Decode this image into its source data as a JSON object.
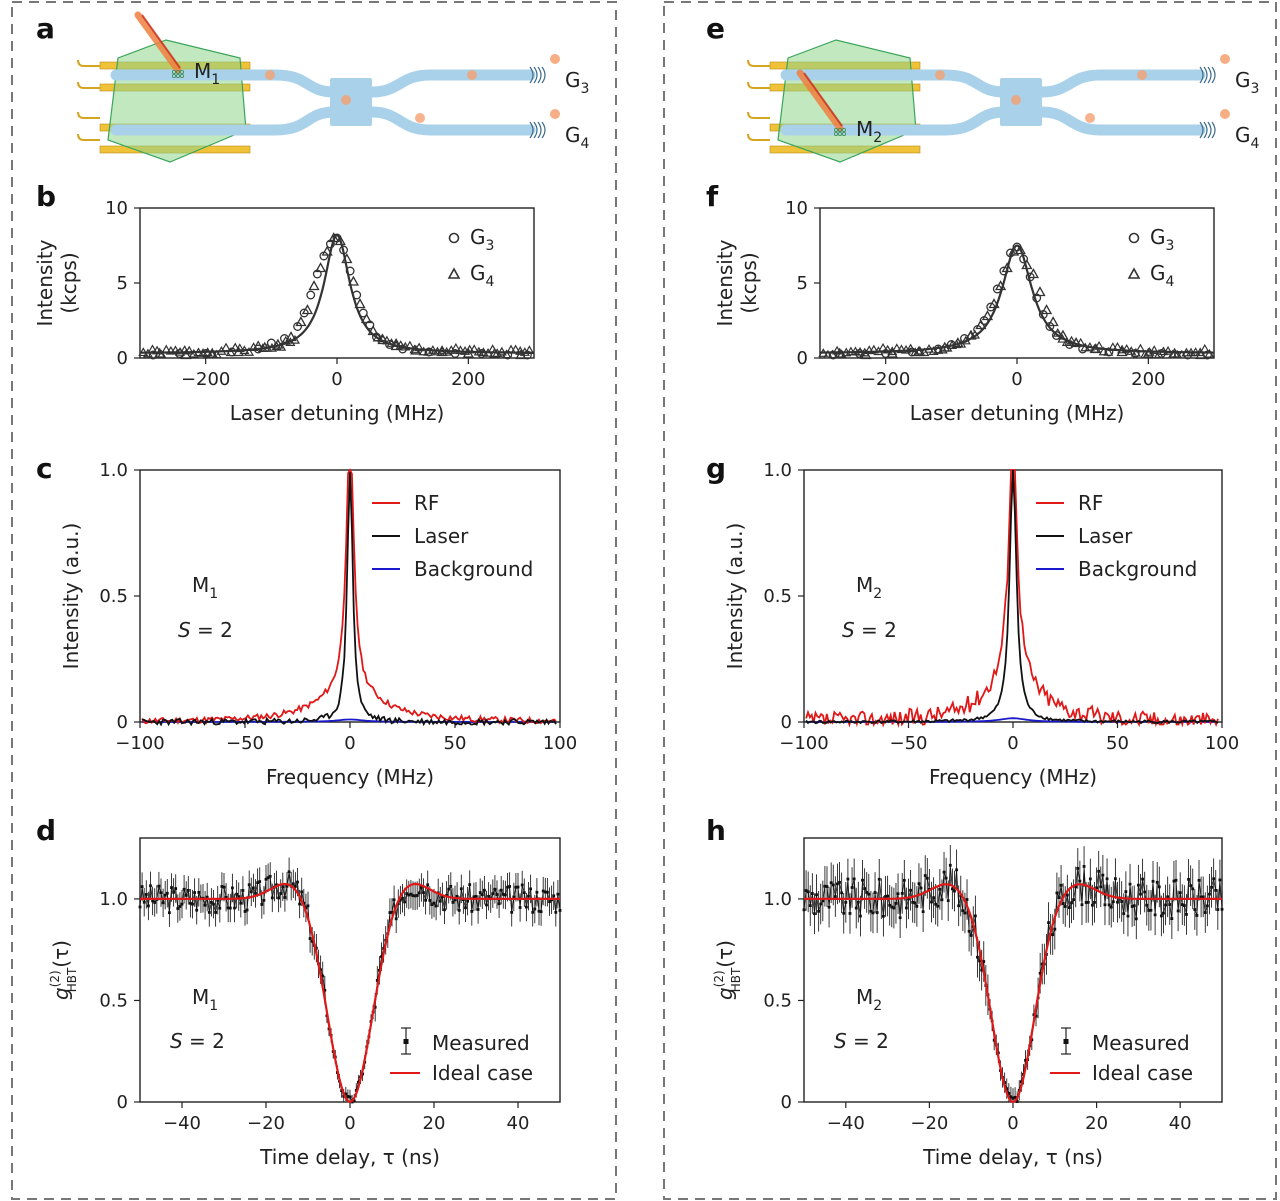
{
  "figure": {
    "panel_letters": [
      "a",
      "b",
      "c",
      "d",
      "e",
      "f",
      "g",
      "h"
    ]
  },
  "schematics": [
    {
      "letter": "a",
      "emitter_label": "M",
      "emitter_sub": "1",
      "grating_labels": [
        {
          "main": "G",
          "sub": "3"
        },
        {
          "main": "G",
          "sub": "4"
        }
      ],
      "laser_on": "top"
    },
    {
      "letter": "e",
      "emitter_label": "M",
      "emitter_sub": "2",
      "grating_labels": [
        {
          "main": "G",
          "sub": "3"
        },
        {
          "main": "G",
          "sub": "4"
        }
      ],
      "laser_on": "bottom"
    }
  ],
  "colors": {
    "rf": "#e01818",
    "laser": "#111111",
    "background": "#1a1acc",
    "ideal": "#e01818",
    "measured": "#111111",
    "waveguide": "#a9d2ea",
    "electrode": "#f0c23a",
    "flake": "#8fd68a"
  },
  "chart_data": [
    {
      "panel": "b",
      "type": "scatter",
      "xlabel": "Laser detuning (MHz)",
      "ylabel": [
        "Intensity",
        "(kcps)"
      ],
      "xlim": [
        -300,
        300
      ],
      "ylim": [
        0,
        10
      ],
      "xticks": [
        -200,
        0,
        200
      ],
      "xticklabels": [
        "−200",
        "0",
        "200"
      ],
      "yticks": [
        0,
        5,
        10
      ],
      "yticklabels": [
        "0",
        "5",
        "10"
      ],
      "series": [
        {
          "name": "G3",
          "label_main": "G",
          "label_sub": "3",
          "marker": "circle",
          "x": [
            -280,
            -240,
            -200,
            -160,
            -120,
            -100,
            -80,
            -60,
            -50,
            -40,
            -30,
            -20,
            -10,
            0,
            10,
            20,
            30,
            40,
            50,
            60,
            80,
            100,
            140,
            180,
            220,
            260,
            290
          ],
          "y": [
            0.2,
            0.3,
            0.3,
            0.4,
            0.6,
            1.0,
            1.3,
            2.1,
            3.0,
            4.2,
            5.6,
            6.8,
            7.6,
            8.0,
            7.2,
            5.8,
            4.2,
            3.0,
            2.2,
            1.4,
            0.9,
            0.6,
            0.4,
            0.3,
            0.3,
            0.2,
            0.2
          ]
        },
        {
          "name": "G4",
          "label_main": "G",
          "label_sub": "4",
          "marker": "triangle",
          "x": [
            -270,
            -230,
            -190,
            -150,
            -110,
            -90,
            -70,
            -55,
            -45,
            -35,
            -25,
            -15,
            -5,
            5,
            15,
            25,
            35,
            45,
            55,
            70,
            90,
            120,
            160,
            200,
            240,
            280
          ],
          "y": [
            0.3,
            0.2,
            0.3,
            0.4,
            0.7,
            0.9,
            1.4,
            2.4,
            3.2,
            4.8,
            6.0,
            7.1,
            8.0,
            7.8,
            6.6,
            5.1,
            3.6,
            2.6,
            1.8,
            1.2,
            0.8,
            0.5,
            0.4,
            0.3,
            0.3,
            0.2
          ]
        }
      ],
      "fit": {
        "center": 0,
        "gamma": 24,
        "amp": 7.9,
        "offset": 0.3
      }
    },
    {
      "panel": "f",
      "type": "scatter",
      "xlabel": "Laser detuning (MHz)",
      "ylabel": [
        "Intensity",
        "(kcps)"
      ],
      "xlim": [
        -300,
        300
      ],
      "ylim": [
        0,
        10
      ],
      "xticks": [
        -200,
        0,
        200
      ],
      "xticklabels": [
        "−200",
        "0",
        "200"
      ],
      "yticks": [
        0,
        5,
        10
      ],
      "yticklabels": [
        "0",
        "5",
        "10"
      ],
      "series": [
        {
          "name": "G3",
          "label_main": "G",
          "label_sub": "3",
          "marker": "circle",
          "x": [
            -280,
            -240,
            -200,
            -160,
            -120,
            -100,
            -80,
            -60,
            -50,
            -40,
            -30,
            -20,
            -10,
            0,
            10,
            20,
            30,
            40,
            50,
            60,
            80,
            100,
            140,
            180,
            220,
            260,
            290
          ],
          "y": [
            0.2,
            0.3,
            0.3,
            0.4,
            0.6,
            0.9,
            1.3,
            1.9,
            2.5,
            3.4,
            4.6,
            5.8,
            7.0,
            7.4,
            6.6,
            5.4,
            4.0,
            2.9,
            2.1,
            1.5,
            0.9,
            0.6,
            0.4,
            0.3,
            0.3,
            0.2,
            0.2
          ]
        },
        {
          "name": "G4",
          "label_main": "G",
          "label_sub": "4",
          "marker": "triangle",
          "x": [
            -270,
            -230,
            -190,
            -150,
            -110,
            -90,
            -70,
            -55,
            -45,
            -35,
            -25,
            -15,
            -5,
            5,
            15,
            25,
            35,
            45,
            55,
            70,
            90,
            120,
            160,
            200,
            240,
            280
          ],
          "y": [
            0.3,
            0.2,
            0.3,
            0.4,
            0.7,
            1.0,
            1.5,
            2.2,
            2.8,
            3.6,
            4.8,
            6.0,
            7.1,
            7.2,
            6.2,
            5.6,
            4.4,
            3.2,
            2.4,
            1.5,
            1.0,
            0.6,
            0.4,
            0.3,
            0.3,
            0.2
          ]
        }
      ],
      "fit": {
        "center": 0,
        "gamma": 28,
        "amp": 7.2,
        "offset": 0.3
      }
    },
    {
      "panel": "c",
      "type": "line",
      "xlabel": "Frequency (MHz)",
      "ylabel": [
        "Intensity (a.u.)"
      ],
      "xlim": [
        -100,
        100
      ],
      "ylim": [
        0,
        1.0
      ],
      "xticks": [
        -100,
        -50,
        0,
        50,
        100
      ],
      "xticklabels": [
        "−100",
        "−50",
        "0",
        "50",
        "100"
      ],
      "yticks": [
        0,
        0.5,
        1.0
      ],
      "yticklabels": [
        "0",
        "0.5",
        "1.0"
      ],
      "annotation": {
        "emitter_main": "M",
        "emitter_sub": "1",
        "s_label": "S",
        "s_value": " = 2"
      },
      "series": [
        {
          "name": "RF",
          "color_key": "rf",
          "peak": 1.0,
          "core_width": 2.2,
          "wing_amp": 0.12,
          "wing_width": 18,
          "noise": 0.012,
          "seed": 11
        },
        {
          "name": "Laser",
          "color_key": "laser",
          "peak": 1.0,
          "core_width": 1.6,
          "wing_amp": 0.0,
          "wing_width": 10,
          "noise": 0.012,
          "seed": 23
        },
        {
          "name": "Background",
          "color_key": "background",
          "peak": 0.01,
          "core_width": 8,
          "wing_amp": 0.0,
          "wing_width": 10,
          "noise": 0.0,
          "seed": 5
        }
      ]
    },
    {
      "panel": "g",
      "type": "line",
      "xlabel": "Frequency (MHz)",
      "ylabel": [
        "Intensity (a.u.)"
      ],
      "xlim": [
        -100,
        100
      ],
      "ylim": [
        0,
        1.0
      ],
      "xticks": [
        -100,
        -50,
        0,
        50,
        100
      ],
      "xticklabels": [
        "−100",
        "−50",
        "0",
        "50",
        "100"
      ],
      "yticks": [
        0,
        0.5,
        1.0
      ],
      "yticklabels": [
        "0",
        "0.5",
        "1.0"
      ],
      "annotation": {
        "emitter_main": "M",
        "emitter_sub": "2",
        "s_label": "S",
        "s_value": " = 2"
      },
      "series": [
        {
          "name": "RF",
          "color_key": "rf",
          "peak": 1.0,
          "core_width": 2.4,
          "wing_amp": 0.16,
          "wing_width": 16,
          "noise": 0.035,
          "seed": 37
        },
        {
          "name": "Laser",
          "color_key": "laser",
          "peak": 1.0,
          "core_width": 2.0,
          "wing_amp": 0.0,
          "wing_width": 10,
          "noise": 0.006,
          "seed": 41
        },
        {
          "name": "Background",
          "color_key": "background",
          "peak": 0.015,
          "core_width": 8,
          "wing_amp": 0.0,
          "wing_width": 10,
          "noise": 0.0,
          "seed": 7
        }
      ]
    },
    {
      "panel": "d",
      "type": "scatter",
      "xlabel": "Time delay, τ (ns)",
      "ylabel_main": "g",
      "ylabel_sup": "(2)",
      "ylabel_sub": "HBT",
      "ylabel_tail": "(τ)",
      "xlim": [
        -50,
        50
      ],
      "ylim": [
        0,
        1.3
      ],
      "xticks": [
        -40,
        -20,
        0,
        20,
        40
      ],
      "xticklabels": [
        "−40",
        "−20",
        "0",
        "20",
        "40"
      ],
      "yticks": [
        0,
        0.5,
        1.0
      ],
      "yticklabels": [
        "0",
        "0.5",
        "1.0"
      ],
      "annotation": {
        "emitter_main": "M",
        "emitter_sub": "1",
        "s_label": "S",
        "s_value": " = 2"
      },
      "series": [
        {
          "name": "Measured",
          "kind": "errorbar",
          "noise": 0.07,
          "err": 0.07,
          "seed": 3
        },
        {
          "name": "Ideal case",
          "kind": "line",
          "color_key": "ideal"
        }
      ],
      "model": {
        "dip_width": 5.2,
        "bump_amp": 0.09,
        "bump_center": 14,
        "bump_width": 4.5
      }
    },
    {
      "panel": "h",
      "type": "scatter",
      "xlabel": "Time delay, τ (ns)",
      "ylabel_main": "g",
      "ylabel_sup": "(2)",
      "ylabel_sub": "HBT",
      "ylabel_tail": "(τ)",
      "xlim": [
        -50,
        50
      ],
      "ylim": [
        0,
        1.3
      ],
      "xticks": [
        -40,
        -20,
        0,
        20,
        40
      ],
      "xticklabels": [
        "−40",
        "−20",
        "0",
        "20",
        "40"
      ],
      "yticks": [
        0,
        0.5,
        1.0
      ],
      "yticklabels": [
        "0",
        "0.5",
        "1.0"
      ],
      "annotation": {
        "emitter_main": "M",
        "emitter_sub": "2",
        "s_label": "S",
        "s_value": " = 2"
      },
      "series": [
        {
          "name": "Measured",
          "kind": "errorbar",
          "noise": 0.1,
          "err": 0.1,
          "seed": 9
        },
        {
          "name": "Ideal case",
          "kind": "line",
          "color_key": "ideal"
        }
      ],
      "model": {
        "dip_width": 5.0,
        "bump_amp": 0.08,
        "bump_center": 15,
        "bump_width": 4.5
      }
    }
  ]
}
